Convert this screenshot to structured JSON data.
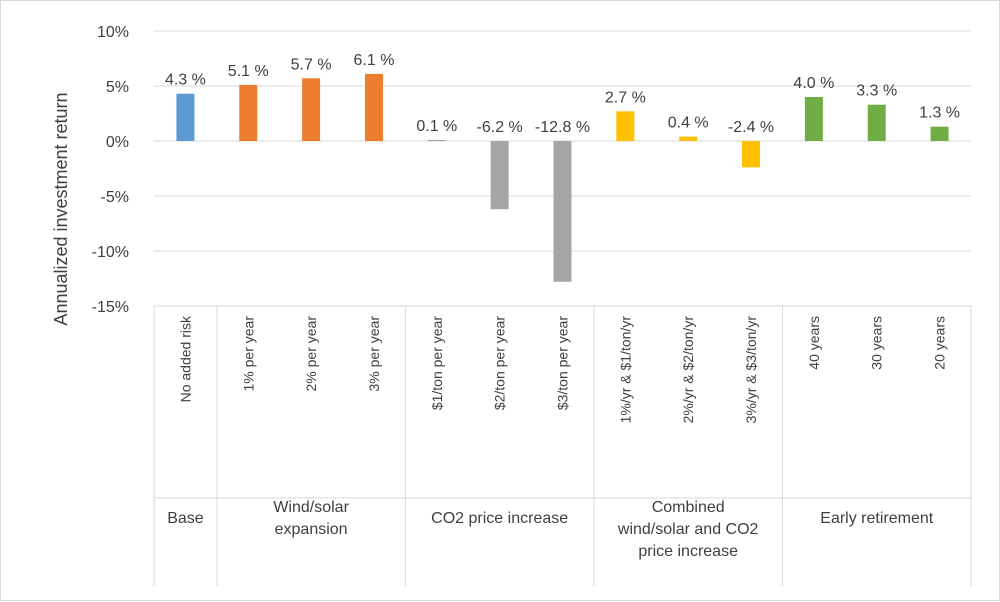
{
  "chart_data": {
    "type": "bar",
    "ylabel": "Annualized investment return",
    "ylim": [
      -15,
      10
    ],
    "yticks": [
      10,
      5,
      0,
      -5,
      -10,
      -15
    ],
    "ytick_labels": [
      "10%",
      "5%",
      "0%",
      "-5%",
      "-10%",
      "-15%"
    ],
    "grid": true,
    "groups": [
      {
        "name": "Base",
        "name_lines": [
          "Base"
        ],
        "color": "#5b9bd5",
        "categories": [
          "No added risk"
        ],
        "values": [
          4.3
        ],
        "data_labels": [
          "4.3 %"
        ]
      },
      {
        "name": "Wind/solar expansion",
        "name_lines": [
          "Wind/solar",
          "expansion"
        ],
        "color": "#ed7d31",
        "categories": [
          "1% per year",
          "2% per year",
          "3% per year"
        ],
        "values": [
          5.1,
          5.7,
          6.1
        ],
        "data_labels": [
          "5.1 %",
          "5.7 %",
          "6.1 %"
        ]
      },
      {
        "name": "CO2 price increase",
        "name_lines": [
          "CO2 price increase"
        ],
        "color": "#a5a5a5",
        "categories": [
          "$1/ton per year",
          "$2/ton per year",
          "$3/ton per year"
        ],
        "values": [
          0.1,
          -6.2,
          -12.8
        ],
        "data_labels": [
          "0.1 %",
          "-6.2 %",
          "-12.8 %"
        ]
      },
      {
        "name": "Combined wind/solar and CO2 price increase",
        "name_lines": [
          "Combined",
          "wind/solar and CO2",
          "price increase"
        ],
        "color": "#ffc000",
        "categories": [
          "1%/yr & $1/ton/yr",
          "2%/yr & $2/ton/yr",
          "3%/yr & $3/ton/yr"
        ],
        "values": [
          2.7,
          0.4,
          -2.4
        ],
        "data_labels": [
          "2.7 %",
          "0.4 %",
          "-2.4 %"
        ]
      },
      {
        "name": "Early retirement",
        "name_lines": [
          "Early retirement"
        ],
        "color": "#70ad47",
        "categories": [
          "40 years",
          "30 years",
          "20 years"
        ],
        "values": [
          4.0,
          3.3,
          1.3
        ],
        "data_labels": [
          "4.0 %",
          "3.3 %",
          "1.3 %"
        ]
      }
    ]
  }
}
